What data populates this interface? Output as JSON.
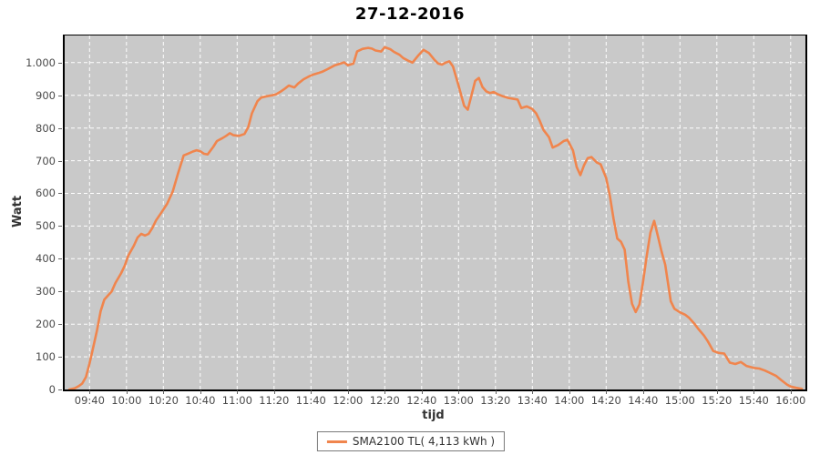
{
  "title": "27-12-2016",
  "colors": {
    "series": "#F0854D",
    "plot_background": "#C9C9C9",
    "grid": "#FFFFFF",
    "axis_text": "#4A4A4A",
    "border": "#000000"
  },
  "legend": {
    "label": "SMA2100 TL( 4,113 kWh )"
  },
  "chart_data": {
    "type": "line",
    "title": "27-12-2016",
    "xlabel": "tijd",
    "ylabel": "Watt",
    "grid": true,
    "legend_position": "bottom",
    "x_domain_minutes": [
      566.5,
      968
    ],
    "y_domain": [
      0,
      1083
    ],
    "x_ticks": [
      "09:40",
      "10:00",
      "10:20",
      "10:40",
      "11:00",
      "11:20",
      "11:40",
      "12:00",
      "12:20",
      "12:40",
      "13:00",
      "13:20",
      "13:40",
      "14:00",
      "14:20",
      "14:40",
      "15:00",
      "15:20",
      "15:40",
      "16:00"
    ],
    "y_tick_values": [
      0,
      100,
      200,
      300,
      400,
      500,
      600,
      700,
      800,
      900,
      1000
    ],
    "y_tick_labels": [
      "0",
      "100",
      "200",
      "300",
      "400",
      "500",
      "600",
      "700",
      "800",
      "900",
      "1.000"
    ],
    "y_grid_values": [
      100,
      200,
      300,
      400,
      500,
      600,
      700,
      800,
      900,
      1000
    ],
    "series": [
      {
        "name": "SMA2100 TL( 4,113 kWh )",
        "color": "#F0854D",
        "points": [
          [
            "09:29",
            0
          ],
          [
            "09:32",
            4
          ],
          [
            "09:34",
            10
          ],
          [
            "09:36",
            18
          ],
          [
            "09:38",
            38
          ],
          [
            "09:40",
            80
          ],
          [
            "09:42",
            130
          ],
          [
            "09:44",
            180
          ],
          [
            "09:46",
            240
          ],
          [
            "09:48",
            275
          ],
          [
            "09:50",
            288
          ],
          [
            "09:52",
            300
          ],
          [
            "09:54",
            326
          ],
          [
            "09:57",
            355
          ],
          [
            "09:59",
            378
          ],
          [
            "10:01",
            410
          ],
          [
            "10:04",
            440
          ],
          [
            "10:06",
            465
          ],
          [
            "10:08",
            476
          ],
          [
            "10:10",
            471
          ],
          [
            "10:12",
            476
          ],
          [
            "10:14",
            494
          ],
          [
            "10:16",
            517
          ],
          [
            "10:19",
            542
          ],
          [
            "10:22",
            568
          ],
          [
            "10:25",
            605
          ],
          [
            "10:28",
            662
          ],
          [
            "10:31",
            716
          ],
          [
            "10:34",
            723
          ],
          [
            "10:36",
            728
          ],
          [
            "10:38",
            732
          ],
          [
            "10:40",
            729
          ],
          [
            "10:42",
            721
          ],
          [
            "10:44",
            719
          ],
          [
            "10:47",
            742
          ],
          [
            "10:49",
            760
          ],
          [
            "10:52",
            769
          ],
          [
            "10:54",
            776
          ],
          [
            "10:56",
            784
          ],
          [
            "10:58",
            778
          ],
          [
            "11:01",
            776
          ],
          [
            "11:04",
            782
          ],
          [
            "11:06",
            803
          ],
          [
            "11:08",
            845
          ],
          [
            "11:11",
            882
          ],
          [
            "11:13",
            893
          ],
          [
            "11:16",
            897
          ],
          [
            "11:19",
            900
          ],
          [
            "11:21",
            903
          ],
          [
            "11:24",
            913
          ],
          [
            "11:26",
            921
          ],
          [
            "11:28",
            930
          ],
          [
            "11:31",
            924
          ],
          [
            "11:33",
            936
          ],
          [
            "11:36",
            949
          ],
          [
            "11:39",
            958
          ],
          [
            "11:41",
            963
          ],
          [
            "11:44",
            968
          ],
          [
            "11:46",
            972
          ],
          [
            "11:49",
            980
          ],
          [
            "11:51",
            986
          ],
          [
            "11:53",
            992
          ],
          [
            "11:56",
            997
          ],
          [
            "11:58",
            1001
          ],
          [
            "12:00",
            992
          ],
          [
            "12:03",
            997
          ],
          [
            "12:05",
            1034
          ],
          [
            "12:08",
            1042
          ],
          [
            "12:11",
            1045
          ],
          [
            "12:13",
            1043
          ],
          [
            "12:15",
            1037
          ],
          [
            "12:18",
            1034
          ],
          [
            "12:20",
            1047
          ],
          [
            "12:23",
            1041
          ],
          [
            "12:25",
            1033
          ],
          [
            "12:28",
            1024
          ],
          [
            "12:30",
            1014
          ],
          [
            "12:33",
            1005
          ],
          [
            "12:35",
            1000
          ],
          [
            "12:38",
            1021
          ],
          [
            "12:41",
            1039
          ],
          [
            "12:44",
            1029
          ],
          [
            "12:47",
            1008
          ],
          [
            "12:49",
            997
          ],
          [
            "12:51",
            994
          ],
          [
            "12:53",
            1000
          ],
          [
            "12:55",
            1004
          ],
          [
            "12:57",
            988
          ],
          [
            "13:00",
            930
          ],
          [
            "13:03",
            868
          ],
          [
            "13:05",
            856
          ],
          [
            "13:07",
            900
          ],
          [
            "13:09",
            944
          ],
          [
            "13:11",
            953
          ],
          [
            "13:13",
            925
          ],
          [
            "13:15",
            912
          ],
          [
            "13:17",
            907
          ],
          [
            "13:19",
            910
          ],
          [
            "13:21",
            904
          ],
          [
            "13:24",
            897
          ],
          [
            "13:27",
            892
          ],
          [
            "13:30",
            889
          ],
          [
            "13:32",
            887
          ],
          [
            "13:34",
            861
          ],
          [
            "13:37",
            866
          ],
          [
            "13:40",
            858
          ],
          [
            "13:42",
            845
          ],
          [
            "13:44",
            822
          ],
          [
            "13:46",
            794
          ],
          [
            "13:49",
            772
          ],
          [
            "13:51",
            740
          ],
          [
            "13:54",
            748
          ],
          [
            "13:57",
            760
          ],
          [
            "13:59",
            764
          ],
          [
            "14:02",
            731
          ],
          [
            "14:04",
            681
          ],
          [
            "14:06",
            656
          ],
          [
            "14:08",
            686
          ],
          [
            "14:10",
            708
          ],
          [
            "14:12",
            711
          ],
          [
            "14:15",
            694
          ],
          [
            "14:17",
            689
          ],
          [
            "14:20",
            647
          ],
          [
            "14:22",
            592
          ],
          [
            "14:24",
            522
          ],
          [
            "14:26",
            462
          ],
          [
            "14:28",
            452
          ],
          [
            "14:30",
            428
          ],
          [
            "14:32",
            330
          ],
          [
            "14:34",
            262
          ],
          [
            "14:36",
            237
          ],
          [
            "14:38",
            260
          ],
          [
            "14:40",
            330
          ],
          [
            "14:42",
            410
          ],
          [
            "14:44",
            480
          ],
          [
            "14:46",
            516
          ],
          [
            "14:48",
            470
          ],
          [
            "14:50",
            422
          ],
          [
            "14:52",
            382
          ],
          [
            "14:55",
            270
          ],
          [
            "14:57",
            247
          ],
          [
            "15:00",
            236
          ],
          [
            "15:03",
            228
          ],
          [
            "15:05",
            219
          ],
          [
            "15:08",
            200
          ],
          [
            "15:10",
            185
          ],
          [
            "15:13",
            165
          ],
          [
            "15:15",
            148
          ],
          [
            "15:18",
            118
          ],
          [
            "15:21",
            112
          ],
          [
            "15:24",
            110
          ],
          [
            "15:27",
            82
          ],
          [
            "15:30",
            78
          ],
          [
            "15:33",
            84
          ],
          [
            "15:36",
            72
          ],
          [
            "15:40",
            66
          ],
          [
            "15:43",
            64
          ],
          [
            "15:46",
            58
          ],
          [
            "15:49",
            50
          ],
          [
            "15:52",
            42
          ],
          [
            "15:55",
            28
          ],
          [
            "15:58",
            15
          ],
          [
            "16:00",
            9
          ],
          [
            "16:03",
            5
          ],
          [
            "16:06",
            2
          ]
        ]
      }
    ]
  }
}
